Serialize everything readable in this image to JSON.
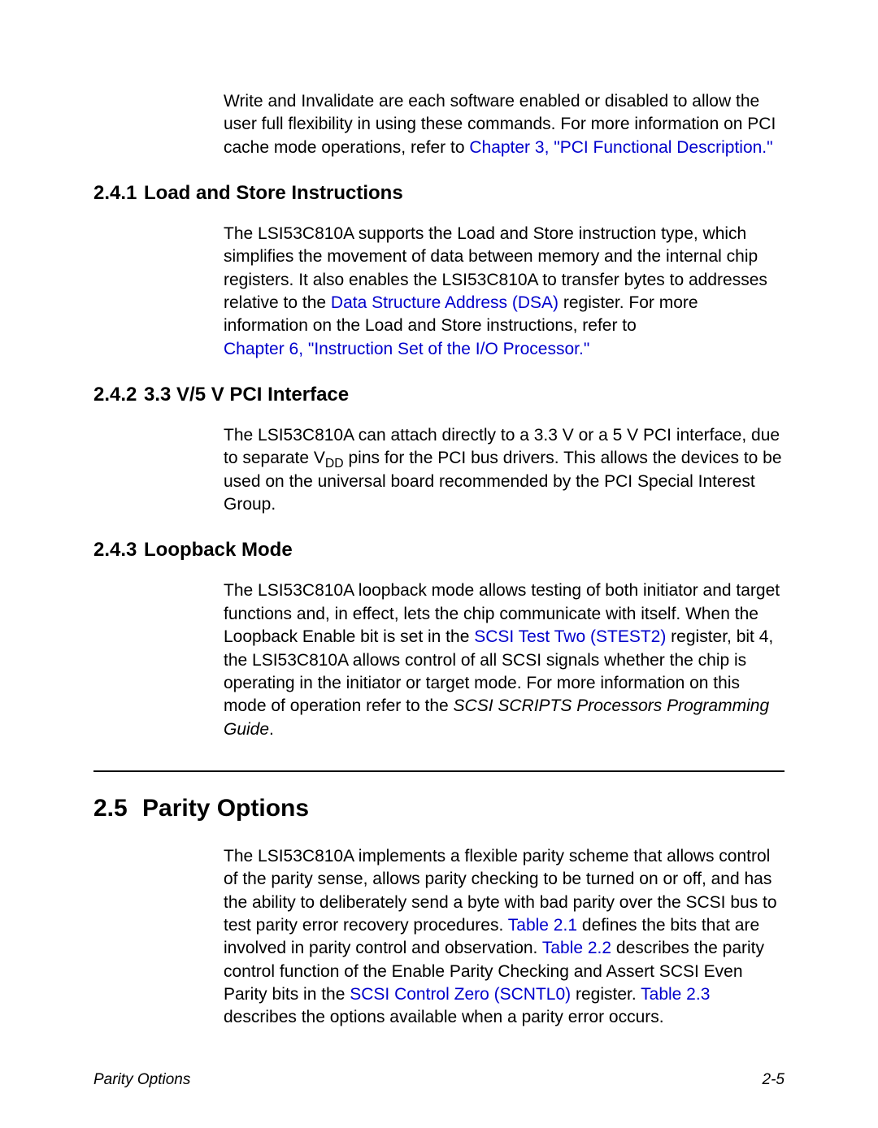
{
  "intro_paragraph_pre": "Write and Invalidate are each software enabled or disabled to allow the user full flexibility in using these commands. For more information on PCI cache mode operations, refer to ",
  "intro_paragraph_link": "Chapter 3, \"PCI Functional Description.\"",
  "sec_241_num": "2.4.1",
  "sec_241_title": "Load and Store Instructions",
  "sec_241_body_pre": "The LSI53C810A supports the Load and Store instruction type, which simplifies the movement of data between memory and the internal chip registers. It also enables the LSI53C810A to transfer bytes to addresses relative to the ",
  "sec_241_link1": "Data Structure Address (DSA)",
  "sec_241_body_mid": " register. For more information on the Load and Store instructions, refer to ",
  "sec_241_link2": "Chapter 6, \"Instruction Set of the I/O Processor.\"",
  "sec_242_num": "2.4.2",
  "sec_242_title": "3.3 V/5 V PCI Interface",
  "sec_242_body_pre": "The LSI53C810A can attach directly to a 3.3 V or a 5 V PCI interface, due to separate V",
  "sec_242_sub": "DD",
  "sec_242_body_post": " pins for the PCI bus drivers. This allows the devices to be used on the universal board recommended by the PCI Special Interest Group.",
  "sec_243_num": "2.4.3",
  "sec_243_title": "Loopback Mode",
  "sec_243_body_pre": "The LSI53C810A loopback mode allows testing of both initiator and target functions and, in effect, lets the chip communicate with itself. When the Loopback Enable bit is set in the ",
  "sec_243_link1": "SCSI Test Two (STEST2)",
  "sec_243_body_mid": " register, bit 4, the LSI53C810A allows control of all SCSI signals whether the chip is operating in the initiator or target mode. For more information on this mode of operation refer to the ",
  "sec_243_italic": "SCSI SCRIPTS Processors Programming Guide",
  "sec_243_body_post": ".",
  "sec_25_num": "2.5",
  "sec_25_title": "Parity Options",
  "sec_25_body_pre": "The LSI53C810A implements a flexible parity scheme that allows control of the parity sense, allows parity checking to be turned on or off, and has the ability to deliberately send a byte with bad parity over the SCSI bus to test parity error recovery procedures. ",
  "sec_25_link1": "Table 2.1",
  "sec_25_body_mid1": " defines the bits that are involved in parity control and observation. ",
  "sec_25_link2": "Table 2.2",
  "sec_25_body_mid2": " describes the parity control function of the Enable Parity Checking and Assert SCSI Even Parity bits in the ",
  "sec_25_link3": "SCSI Control Zero (SCNTL0)",
  "sec_25_body_mid3": " register. ",
  "sec_25_link4": "Table 2.3",
  "sec_25_body_post": " describes the options available when a parity error occurs.",
  "footer_left": "Parity Options",
  "footer_right": "2-5",
  "link_color": "#0000cc"
}
